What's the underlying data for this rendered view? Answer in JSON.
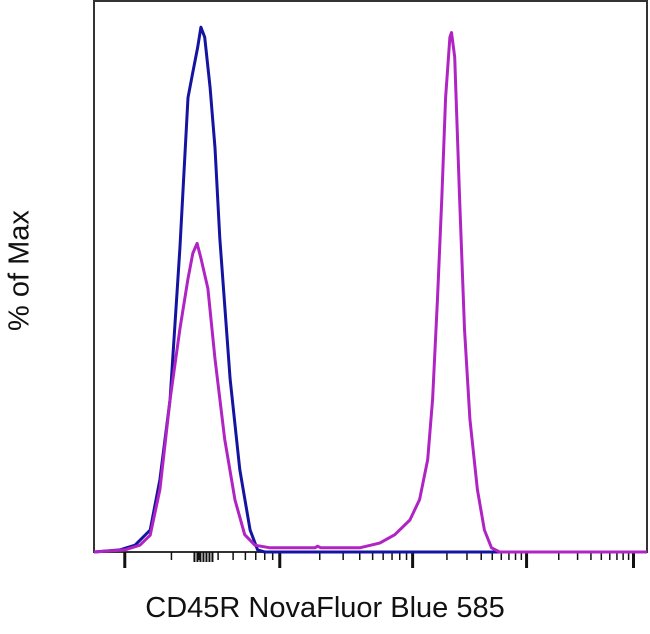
{
  "chart_data": {
    "type": "line",
    "title": "",
    "xlabel": "CD45R NovaFluor Blue 585",
    "ylabel": "% of Max",
    "xlim": [
      0,
      1024
    ],
    "ylim": [
      0,
      105
    ],
    "x_scale": "biexponential (unlabeled ticks)",
    "major_ticks": [
      57,
      344,
      590,
      801,
      999
    ],
    "grid": false,
    "legend": "none",
    "series": [
      {
        "color": "#1414a0",
        "x": [
          0,
          48,
          76,
          104,
          122,
          141,
          159,
          174,
          183,
          192,
          198,
          205,
          215,
          224,
          233,
          252,
          270,
          289,
          303,
          316,
          1024
        ],
        "y": [
          0,
          0.4,
          1.3,
          4.2,
          13.8,
          29.1,
          57.9,
          86.6,
          91.4,
          96.2,
          100,
          98.1,
          88.5,
          77.0,
          59.8,
          33.0,
          15.7,
          4.2,
          0.4,
          0,
          0
        ]
      },
      {
        "color": "#b024c4",
        "x": [
          0,
          57,
          85,
          104,
          122,
          141,
          159,
          174,
          183,
          191,
          198,
          211,
          224,
          242,
          261,
          279,
          298,
          326,
          409,
          414,
          420,
          492,
          529,
          557,
          585,
          603,
          618,
          627,
          636,
          644,
          651,
          659,
          662,
          668,
          677,
          686,
          696,
          710,
          723,
          736,
          751,
          1024
        ],
        "y": [
          0,
          0.4,
          1.3,
          3.2,
          11.9,
          29.1,
          42.5,
          52.1,
          56.9,
          58.8,
          56.0,
          50.2,
          36.8,
          21.5,
          9.9,
          3.3,
          1.3,
          0.8,
          0.8,
          1.1,
          0.8,
          0.8,
          1.7,
          3.3,
          6.1,
          10.0,
          17.6,
          29.1,
          48.3,
          67.4,
          86.6,
          98.1,
          99.0,
          94.3,
          67.4,
          42.5,
          25.3,
          11.9,
          4.2,
          0.8,
          0,
          0
        ]
      }
    ]
  }
}
